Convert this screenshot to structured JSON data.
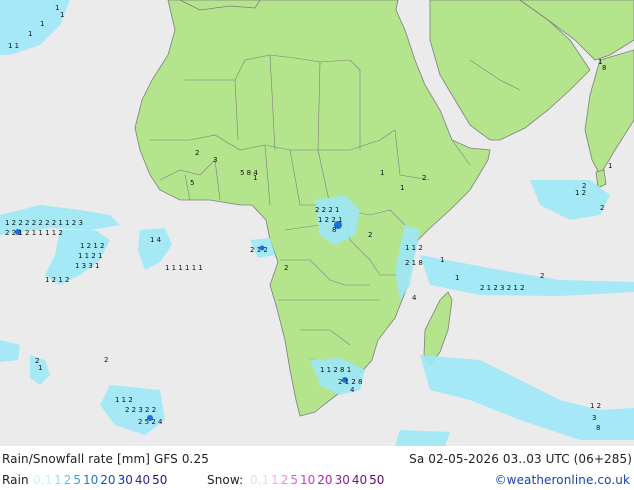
{
  "title": "Rain/Snowfall rate [mm] GFS 0.25",
  "valid_time": "Sa 02-05-2026 03..03 UTC (06+285)",
  "rain_label": "Rain",
  "snow_label": "Snow:",
  "credit": "©weatheronline.co.uk",
  "rain_scale": [
    {
      "v": "0.1",
      "c": "#cdeffa"
    },
    {
      "v": "1",
      "c": "#8fdcf5"
    },
    {
      "v": "2",
      "c": "#55c8f0"
    },
    {
      "v": "5",
      "c": "#2aa6e6"
    },
    {
      "v": "10",
      "c": "#1a78d0"
    },
    {
      "v": "20",
      "c": "#1452b8"
    },
    {
      "v": "30",
      "c": "#0f35a0"
    },
    {
      "v": "40",
      "c": "#3a1f96"
    },
    {
      "v": "50",
      "c": "#1a1a7a"
    }
  ],
  "snow_scale": [
    {
      "v": "0.1",
      "c": "#f3d6f3"
    },
    {
      "v": "1",
      "c": "#e8b4ea"
    },
    {
      "v": "2",
      "c": "#dc8fe0"
    },
    {
      "v": "5",
      "c": "#cf6ad6"
    },
    {
      "v": "10",
      "c": "#c040c8"
    },
    {
      "v": "20",
      "c": "#a82ab0"
    },
    {
      "v": "30",
      "c": "#8f1c96"
    },
    {
      "v": "40",
      "c": "#76127c"
    },
    {
      "v": "50",
      "c": "#5e0a64"
    }
  ],
  "colors": {
    "land": "#b4e48c",
    "sea": "#ebebeb",
    "border": "#7f7f7f",
    "rain_light": "#9ee8f8",
    "rain_heavy": "#1e6fd6",
    "label": "#111111"
  }
}
